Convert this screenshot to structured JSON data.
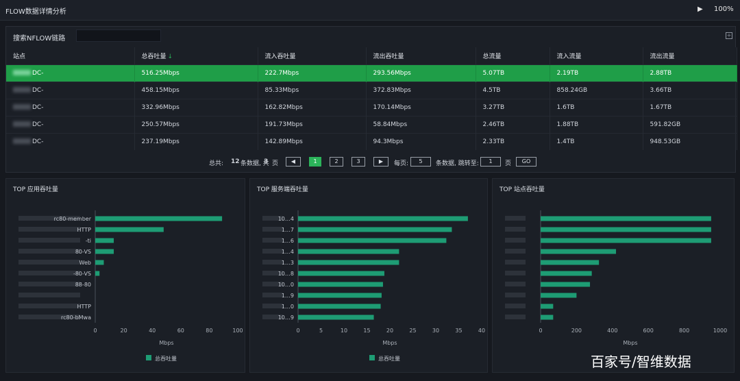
{
  "window": {
    "title": "FLOW数据详情分析",
    "zoom": "100%",
    "play_icon": "play-icon"
  },
  "search": {
    "label": "搜索NFLOW链路",
    "value": "",
    "expand_icon": "expand-icon"
  },
  "table": {
    "headers": [
      "站点",
      "总吞吐量",
      "流入吞吐量",
      "流出吞吐量",
      "总流量",
      "流入流量",
      "流出流量"
    ],
    "sort_indicator": "↓",
    "rows": [
      {
        "site": "DC-",
        "total": "516.25Mbps",
        "in": "222.7Mbps",
        "out": "293.56Mbps",
        "total_flow": "5.07TB",
        "in_flow": "2.19TB",
        "out_flow": "2.88TB",
        "selected": true
      },
      {
        "site": "DC-",
        "total": "458.15Mbps",
        "in": "85.33Mbps",
        "out": "372.83Mbps",
        "total_flow": "4.5TB",
        "in_flow": "858.24GB",
        "out_flow": "3.66TB",
        "selected": false
      },
      {
        "site": "DC-",
        "total": "332.96Mbps",
        "in": "162.82Mbps",
        "out": "170.14Mbps",
        "total_flow": "3.27TB",
        "in_flow": "1.6TB",
        "out_flow": "1.67TB",
        "selected": false
      },
      {
        "site": "DC-",
        "total": "250.57Mbps",
        "in": "191.73Mbps",
        "out": "58.84Mbps",
        "total_flow": "2.46TB",
        "in_flow": "1.88TB",
        "out_flow": "591.82GB",
        "selected": false
      },
      {
        "site": "DC-",
        "total": "237.19Mbps",
        "in": "142.89Mbps",
        "out": "94.3Mbps",
        "total_flow": "2.33TB",
        "in_flow": "1.4TB",
        "out_flow": "948.53GB",
        "selected": false
      }
    ]
  },
  "pager": {
    "total_prefix": "总共:",
    "total_count": "12",
    "total_mid": "条数据, 共",
    "total_pages": "3",
    "total_suffix": "页",
    "prev": "◀",
    "pages": [
      "1",
      "2",
      "3"
    ],
    "next": "▶",
    "per_page_label": "每页:",
    "per_page_value": "5",
    "jump_label": "条数据, 跳转至:",
    "jump_value": "1",
    "page_suffix": "页",
    "go": "GO"
  },
  "chart_data": [
    {
      "type": "bar",
      "orientation": "horizontal",
      "title": "TOP 应用吞吐量",
      "categories": [
        "rc80-member",
        "HTTP",
        "-ti",
        "80-VS",
        "Web",
        "-80-VS",
        "88-80",
        "",
        "HTTP",
        "rc80-bMwa"
      ],
      "series": [
        {
          "name": "总吞吐量",
          "values": [
            89,
            48,
            13,
            13,
            6,
            3,
            0,
            0,
            0,
            0
          ]
        }
      ],
      "xlim": [
        0,
        100
      ],
      "xticks": [
        0,
        20,
        40,
        60,
        80,
        100
      ],
      "xlabel": "Mbps",
      "legend": "bottom"
    },
    {
      "type": "bar",
      "orientation": "horizontal",
      "title": "TOP 服务端吞吐量",
      "categories": [
        "10…4",
        "1…7",
        "1…6",
        "1…4",
        "1…3",
        "10…8",
        "10…0",
        "1…9",
        "1…0",
        "10…9"
      ],
      "series": [
        {
          "name": "总吞吐量",
          "values": [
            37,
            33.5,
            32.3,
            22,
            22,
            18.8,
            18.5,
            18.2,
            18,
            16.5
          ]
        }
      ],
      "xlim": [
        0,
        40
      ],
      "xticks": [
        0,
        5,
        10,
        15,
        20,
        25,
        30,
        35,
        40
      ],
      "xlabel": "Mbps",
      "legend": "bottom"
    },
    {
      "type": "bar",
      "orientation": "horizontal",
      "title": "TOP 站点吞吐量",
      "categories": [
        "",
        "",
        "",
        "",
        "",
        "",
        "",
        "",
        "",
        ""
      ],
      "series": [
        {
          "name": "总吞吐量",
          "values": [
            950,
            950,
            950,
            420,
            325,
            285,
            275,
            200,
            70,
            70
          ]
        }
      ],
      "xlim": [
        0,
        1000
      ],
      "xticks": [
        0,
        200,
        400,
        600,
        800,
        1000
      ],
      "xlabel": "Mbps",
      "legend": "none"
    }
  ],
  "colors": {
    "bar": "#1e9c74",
    "selected_row": "#1f9e48",
    "accent": "#2bb35a"
  },
  "watermark": "百家号/智维数据"
}
